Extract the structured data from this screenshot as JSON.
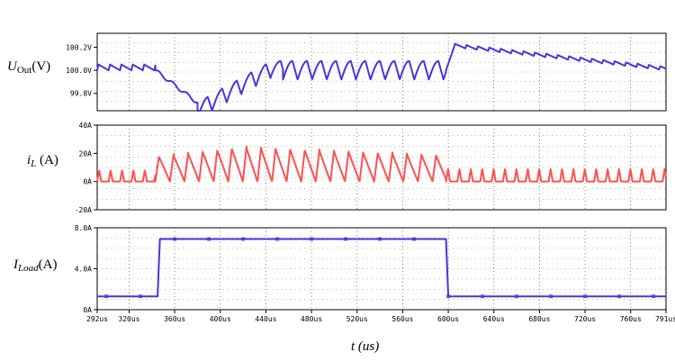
{
  "chart_data": [
    {
      "type": "line",
      "ylabel": {
        "main": "U",
        "sub": "Out",
        "unit": "(V)"
      },
      "ylim": [
        99.65,
        100.32
      ],
      "yticks": [
        {
          "value": 100.2,
          "label": "100.2V"
        },
        {
          "value": 100.0,
          "label": "100.0V"
        },
        {
          "value": 99.8,
          "label": "99.8V"
        }
      ],
      "grid": true,
      "color": "#4b33e0",
      "segments": [
        {
          "x0": 292,
          "x1": 343,
          "kind": "saw",
          "period": 10,
          "low": 100.0,
          "high": 100.05,
          "count": 5
        },
        {
          "x0": 343,
          "x1": 380,
          "kind": "drop",
          "start": 100.0,
          "end": 99.72
        },
        {
          "x0": 380,
          "x1": 455,
          "kind": "recover",
          "period": 12.8,
          "low": 99.72,
          "high": 100.08,
          "drop": 0.14
        },
        {
          "x0": 455,
          "x1": 598,
          "kind": "wave",
          "period": 12.8,
          "low": 99.92,
          "high": 100.08
        },
        {
          "x0": 598,
          "x1": 605,
          "kind": "jump",
          "start": 100.0,
          "end": 100.2
        },
        {
          "x0": 605,
          "x1": 791,
          "kind": "decay",
          "period": 10,
          "start": 100.2,
          "end": 100.0,
          "drop": 0.03
        }
      ]
    },
    {
      "type": "line",
      "ylabel": {
        "main": "i",
        "sub": "L",
        "unit": " (A)"
      },
      "ylim": [
        -20,
        40
      ],
      "yticks": [
        {
          "value": 40,
          "label": "40A"
        },
        {
          "value": 20,
          "label": "20A"
        },
        {
          "value": 0,
          "label": "0A"
        },
        {
          "value": -20,
          "label": "-20A"
        }
      ],
      "grid": true,
      "color": "#ff5050",
      "segments": [
        {
          "x0": 292,
          "x1": 343,
          "kind": "pulse",
          "period": 10,
          "peak": 8
        },
        {
          "x0": 343,
          "x1": 598,
          "kind": "tri",
          "period": 12.8,
          "peak_start": 18,
          "peak_max": 25,
          "peak_end": 19
        },
        {
          "x0": 598,
          "x1": 791,
          "kind": "pulse",
          "period": 10,
          "peak": 9
        }
      ]
    },
    {
      "type": "line",
      "ylabel": {
        "main": "I",
        "sub": "Load",
        "unit": "(A)"
      },
      "ylim": [
        0,
        8
      ],
      "yticks": [
        {
          "value": 8,
          "label": "8.0A"
        },
        {
          "value": 4,
          "label": "4.0A"
        },
        {
          "value": 0,
          "label": "0A"
        }
      ],
      "grid": true,
      "color": "#4b33e0",
      "steps": [
        {
          "x": 292,
          "y": 1.3
        },
        {
          "x": 345,
          "y": 1.3
        },
        {
          "x": 347,
          "y": 6.9
        },
        {
          "x": 598,
          "y": 6.9
        },
        {
          "x": 600,
          "y": 1.3
        },
        {
          "x": 791,
          "y": 1.3
        }
      ]
    }
  ],
  "x_axis": {
    "xlim": [
      292,
      791
    ],
    "ticks": [
      {
        "value": 292,
        "label": "292us"
      },
      {
        "value": 320,
        "label": "320us"
      },
      {
        "value": 360,
        "label": "360us"
      },
      {
        "value": 400,
        "label": "400us"
      },
      {
        "value": 440,
        "label": "440us"
      },
      {
        "value": 480,
        "label": "480us"
      },
      {
        "value": 520,
        "label": "520us"
      },
      {
        "value": 560,
        "label": "560us"
      },
      {
        "value": 600,
        "label": "600us"
      },
      {
        "value": 640,
        "label": "640us"
      },
      {
        "value": 680,
        "label": "680us"
      },
      {
        "value": 720,
        "label": "720us"
      },
      {
        "value": 760,
        "label": "760us"
      },
      {
        "value": 791,
        "label": "791us"
      }
    ],
    "label": {
      "main": "t",
      "unit": " (us)"
    }
  }
}
